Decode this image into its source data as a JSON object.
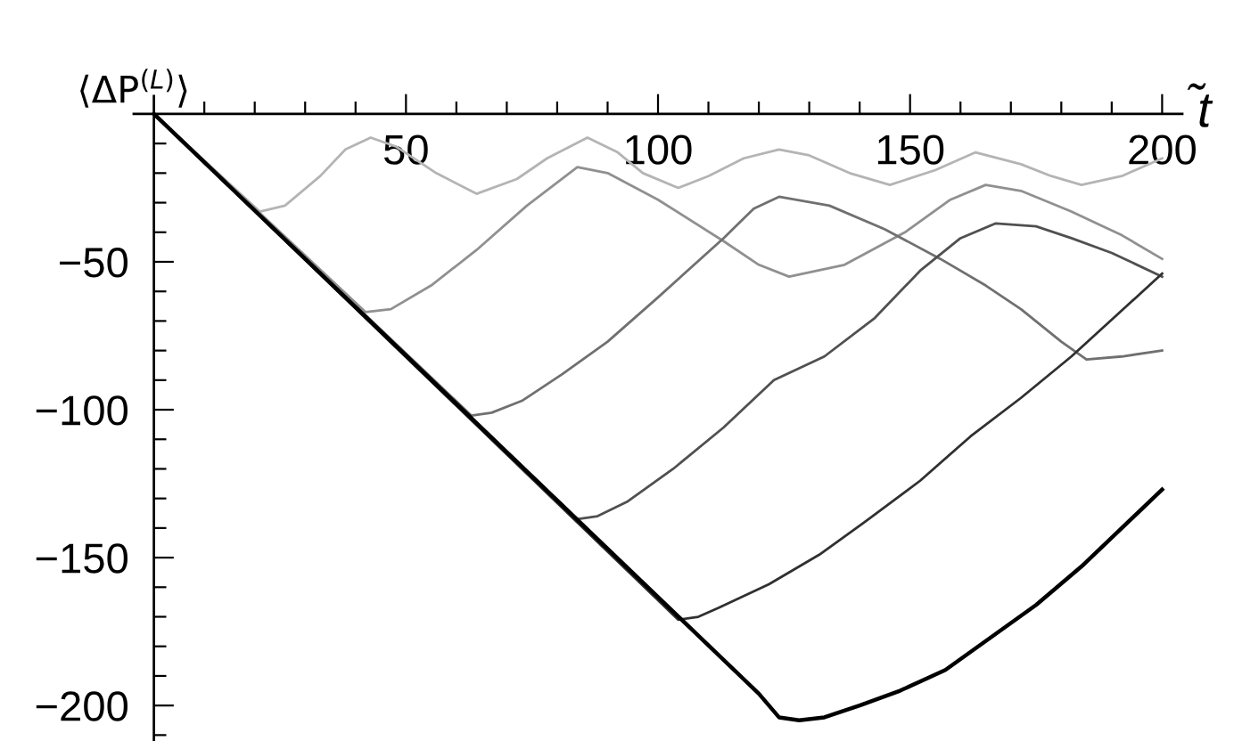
{
  "chart_data": {
    "type": "line",
    "xlabel": "t̃",
    "ylabel": "⟨ΔP$^{(L)}$⟩",
    "xlim": [
      -4,
      204
    ],
    "ylim": [
      -212,
      6
    ],
    "xticks": [
      {
        "value": 10,
        "label": null
      },
      {
        "value": 20,
        "label": null
      },
      {
        "value": 30,
        "label": null
      },
      {
        "value": 40,
        "label": null
      },
      50,
      {
        "value": 60,
        "label": null
      },
      {
        "value": 70,
        "label": null
      },
      {
        "value": 80,
        "label": null
      },
      {
        "value": 90,
        "label": null
      },
      100,
      {
        "value": 110,
        "label": null
      },
      {
        "value": 120,
        "label": null
      },
      {
        "value": 130,
        "label": null
      },
      {
        "value": 140,
        "label": null
      },
      150,
      {
        "value": 160,
        "label": null
      },
      {
        "value": 170,
        "label": null
      },
      {
        "value": 180,
        "label": null
      },
      {
        "value": 190,
        "label": null
      },
      200
    ],
    "yticks": [
      {
        "value": -10,
        "label": null
      },
      {
        "value": -20,
        "label": null
      },
      {
        "value": -30,
        "label": null
      },
      {
        "value": -40,
        "label": null
      },
      {
        "value": -50,
        "label": "−50"
      },
      {
        "value": -60,
        "label": null
      },
      {
        "value": -70,
        "label": null
      },
      {
        "value": -80,
        "label": null
      },
      {
        "value": -90,
        "label": null
      },
      {
        "value": -100,
        "label": "−100"
      },
      {
        "value": -110,
        "label": null
      },
      {
        "value": -120,
        "label": null
      },
      {
        "value": -130,
        "label": null
      },
      {
        "value": -140,
        "label": null
      },
      {
        "value": -150,
        "label": "−150"
      },
      {
        "value": -160,
        "label": null
      },
      {
        "value": -170,
        "label": null
      },
      {
        "value": -180,
        "label": null
      },
      {
        "value": -190,
        "label": null
      },
      {
        "value": -200,
        "label": "−200"
      },
      {
        "value": -210,
        "label": null
      }
    ],
    "grid": false,
    "legend": false,
    "marker": "none",
    "line_style": "solid",
    "series": [
      {
        "color": "#b4b4b4",
        "x": [
          0,
          21,
          26,
          33,
          38,
          43,
          48,
          56,
          64,
          72,
          78,
          86,
          92,
          97,
          104,
          110,
          117,
          124,
          130,
          138,
          146,
          155,
          163,
          172,
          178,
          184,
          192,
          200
        ],
        "values": [
          0,
          -33,
          -31,
          -21,
          -12,
          -8,
          -11,
          -20,
          -27,
          -22,
          -15,
          -8,
          -13,
          -20,
          -25,
          -21,
          -15,
          -12,
          -14,
          -20,
          -24,
          -19,
          -13,
          -17,
          -21,
          -24,
          -21,
          -15
        ]
      },
      {
        "color": "#909090",
        "x": [
          0,
          42,
          47,
          55,
          64,
          74,
          84,
          90,
          100,
          113,
          120,
          126,
          137,
          149,
          158,
          165,
          172,
          182,
          192,
          200
        ],
        "values": [
          0,
          -67,
          -66,
          -58,
          -46,
          -31,
          -18,
          -20,
          -29,
          -43,
          -51,
          -55,
          -51,
          -40,
          -29,
          -24,
          -26,
          -33,
          -41,
          -49
        ]
      },
      {
        "color": "#707070",
        "x": [
          0,
          63,
          67,
          73,
          81,
          90,
          100,
          113,
          119,
          124,
          134,
          145,
          156,
          165,
          172,
          180,
          185,
          192,
          200
        ],
        "values": [
          0,
          -102,
          -101,
          -97,
          -88,
          -77,
          -62,
          -42,
          -32,
          -28,
          -31,
          -39,
          -49,
          -58,
          -66,
          -77,
          -83,
          -82,
          -80
        ]
      },
      {
        "color": "#505050",
        "x": [
          0,
          84,
          88,
          94,
          103,
          113,
          123,
          133,
          143,
          152,
          160,
          167,
          175,
          182,
          190,
          200
        ],
        "values": [
          0,
          -137,
          -136,
          -131,
          -120,
          -106,
          -90,
          -82,
          -69,
          -53,
          -42,
          -37,
          -38,
          -42,
          -47,
          -55
        ]
      },
      {
        "color": "#303030",
        "x": [
          0,
          104,
          108,
          112,
          122,
          132,
          141,
          152,
          162,
          172,
          182,
          191,
          200
        ],
        "values": [
          0,
          -171,
          -170,
          -167,
          -159,
          -149,
          -138,
          -124,
          -109,
          -96,
          -82,
          -68,
          -54
        ]
      },
      {
        "color": "#000000",
        "x": [
          0,
          120,
          124,
          128,
          133,
          140,
          148,
          157,
          166,
          175,
          184,
          192,
          200
        ],
        "values": [
          0,
          -196,
          -204,
          -205,
          -204,
          -200,
          -195,
          -188,
          -177,
          -166,
          -153,
          -140,
          -127
        ]
      }
    ]
  }
}
